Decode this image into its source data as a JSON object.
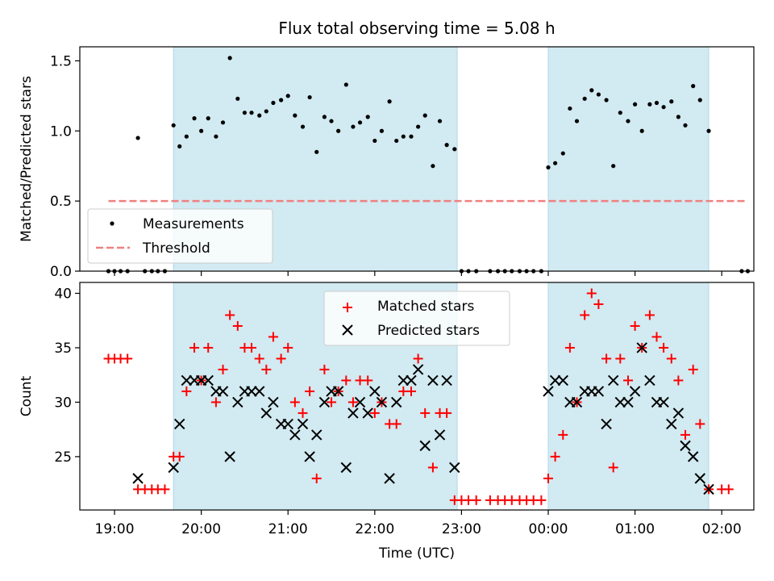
{
  "figure": {
    "title": "Flux total observing time = 5.08 h"
  },
  "colors": {
    "shade": "#add8e6",
    "threshold": "#f08080",
    "matched": "#ff0000",
    "predicted": "#000000",
    "measurement": "#000000"
  },
  "chart_data": [
    {
      "type": "scatter",
      "ylabel": "Matched/Predicted stars",
      "xlim_hours": [
        18.6,
        26.37
      ],
      "ylim": [
        0,
        1.6
      ],
      "yticks": [
        "0.0",
        "0.5",
        "1.0",
        "1.5"
      ],
      "threshold": 0.5,
      "threshold_x_hours": [
        18.93,
        26.28
      ],
      "shaded_regions_hours": [
        [
          19.68,
          22.95
        ],
        [
          24.0,
          25.85
        ]
      ],
      "legend": {
        "placement": "lower-left",
        "entries": [
          "Measurements",
          "Threshold"
        ]
      },
      "series": [
        {
          "name": "Measurements",
          "x_hours": [
            18.93,
            19.0,
            19.07,
            19.15,
            19.27,
            19.35,
            19.43,
            19.5,
            19.58,
            19.68,
            19.75,
            19.83,
            19.92,
            20.0,
            20.08,
            20.17,
            20.25,
            20.33,
            20.42,
            20.5,
            20.58,
            20.67,
            20.75,
            20.83,
            20.92,
            21.0,
            21.08,
            21.17,
            21.25,
            21.33,
            21.42,
            21.5,
            21.58,
            21.67,
            21.75,
            21.83,
            21.92,
            22.0,
            22.08,
            22.17,
            22.25,
            22.33,
            22.42,
            22.5,
            22.58,
            22.67,
            22.75,
            22.83,
            22.92,
            23.0,
            23.08,
            23.17,
            23.33,
            23.42,
            23.5,
            23.58,
            23.67,
            23.75,
            23.83,
            23.92,
            24.0,
            24.08,
            24.17,
            24.25,
            24.33,
            24.42,
            24.5,
            24.58,
            24.67,
            24.75,
            24.83,
            24.92,
            25.0,
            25.08,
            25.17,
            25.25,
            25.33,
            25.42,
            25.5,
            25.58,
            25.67,
            25.75,
            25.85,
            26.23,
            26.3
          ],
          "y": [
            0,
            0,
            0,
            0,
            0.95,
            0,
            0,
            0,
            0,
            1.04,
            0.89,
            0.96,
            1.09,
            1.0,
            1.09,
            0.96,
            1.06,
            1.52,
            1.23,
            1.13,
            1.13,
            1.11,
            1.14,
            1.2,
            1.22,
            1.25,
            1.11,
            1.03,
            1.24,
            0.85,
            1.1,
            1.07,
            1.0,
            1.33,
            1.03,
            1.06,
            1.1,
            0.93,
            1.0,
            1.21,
            0.93,
            0.96,
            0.96,
            1.03,
            1.11,
            0.75,
            1.07,
            0.9,
            0.87,
            0,
            0,
            0,
            0,
            0,
            0,
            0,
            0,
            0,
            0,
            0,
            0.74,
            0.77,
            0.84,
            1.16,
            1.07,
            1.23,
            1.29,
            1.26,
            1.22,
            0.75,
            1.13,
            1.07,
            1.19,
            1.0,
            1.19,
            1.2,
            1.17,
            1.21,
            1.1,
            1.04,
            1.32,
            1.22,
            1.0,
            0,
            0
          ]
        }
      ]
    },
    {
      "type": "scatter",
      "ylabel": "Count",
      "xlabel": "Time (UTC)",
      "xlim_hours": [
        18.6,
        26.37
      ],
      "ylim": [
        20.1,
        41.0
      ],
      "yticks": [
        "25",
        "30",
        "35",
        "40"
      ],
      "xticks": [
        "19:00",
        "20:00",
        "21:00",
        "22:00",
        "23:00",
        "00:00",
        "01:00",
        "02:00"
      ],
      "legend": {
        "placement": "upper-center",
        "entries": [
          "Matched stars",
          "Predicted stars"
        ]
      },
      "series": [
        {
          "name": "Matched stars",
          "x_hours": [
            18.93,
            19.0,
            19.07,
            19.15,
            19.27,
            19.35,
            19.43,
            19.5,
            19.58,
            19.68,
            19.75,
            19.83,
            19.92,
            20.0,
            20.08,
            20.17,
            20.25,
            20.33,
            20.42,
            20.5,
            20.58,
            20.67,
            20.75,
            20.83,
            20.92,
            21.0,
            21.08,
            21.17,
            21.25,
            21.33,
            21.42,
            21.5,
            21.58,
            21.67,
            21.75,
            21.83,
            21.92,
            22.0,
            22.08,
            22.17,
            22.25,
            22.33,
            22.42,
            22.5,
            22.58,
            22.67,
            22.75,
            22.83,
            22.92,
            23.0,
            23.08,
            23.17,
            23.33,
            23.42,
            23.5,
            23.58,
            23.67,
            23.75,
            23.83,
            23.92,
            24.0,
            24.08,
            24.17,
            24.25,
            24.33,
            24.42,
            24.5,
            24.58,
            24.67,
            24.75,
            24.83,
            24.92,
            25.0,
            25.08,
            25.17,
            25.25,
            25.33,
            25.42,
            25.5,
            25.58,
            25.67,
            25.75,
            25.85,
            26.0,
            26.08
          ],
          "y": [
            34,
            34,
            34,
            34,
            22,
            22,
            22,
            22,
            22,
            25,
            25,
            31,
            35,
            32,
            35,
            30,
            33,
            38,
            37,
            35,
            35,
            34,
            33,
            36,
            34,
            35,
            30,
            29,
            31,
            23,
            33,
            30,
            31,
            32,
            30,
            32,
            32,
            29,
            30,
            28,
            28,
            31,
            31,
            34,
            29,
            24,
            29,
            29,
            21,
            21,
            21,
            21,
            21,
            21,
            21,
            21,
            21,
            21,
            21,
            21,
            23,
            25,
            27,
            35,
            30,
            38,
            40,
            39,
            34,
            24,
            34,
            32,
            37,
            35,
            38,
            36,
            35,
            34,
            32,
            27,
            33,
            28,
            22,
            22,
            22
          ]
        },
        {
          "name": "Predicted stars",
          "x_hours": [
            19.27,
            19.68,
            19.75,
            19.83,
            19.92,
            20.0,
            20.08,
            20.17,
            20.25,
            20.33,
            20.42,
            20.5,
            20.58,
            20.67,
            20.75,
            20.83,
            20.92,
            21.0,
            21.08,
            21.17,
            21.25,
            21.33,
            21.42,
            21.5,
            21.58,
            21.67,
            21.75,
            21.83,
            21.92,
            22.0,
            22.08,
            22.17,
            22.25,
            22.33,
            22.42,
            22.5,
            22.58,
            22.67,
            22.75,
            22.83,
            22.92,
            24.0,
            24.08,
            24.17,
            24.25,
            24.33,
            24.42,
            24.5,
            24.58,
            24.67,
            24.75,
            24.83,
            24.92,
            25.0,
            25.08,
            25.17,
            25.25,
            25.33,
            25.42,
            25.5,
            25.58,
            25.67,
            25.75,
            25.85
          ],
          "y": [
            23,
            24,
            28,
            32,
            32,
            32,
            32,
            31,
            31,
            25,
            30,
            31,
            31,
            31,
            29,
            30,
            28,
            28,
            27,
            28,
            25,
            27,
            30,
            31,
            31,
            24,
            29,
            30,
            29,
            31,
            30,
            23,
            30,
            32,
            32,
            33,
            26,
            32,
            27,
            32,
            24,
            31,
            32,
            32,
            30,
            30,
            31,
            31,
            31,
            28,
            32,
            30,
            30,
            31,
            35,
            32,
            30,
            30,
            28,
            29,
            26,
            25,
            23,
            22
          ]
        }
      ]
    }
  ]
}
